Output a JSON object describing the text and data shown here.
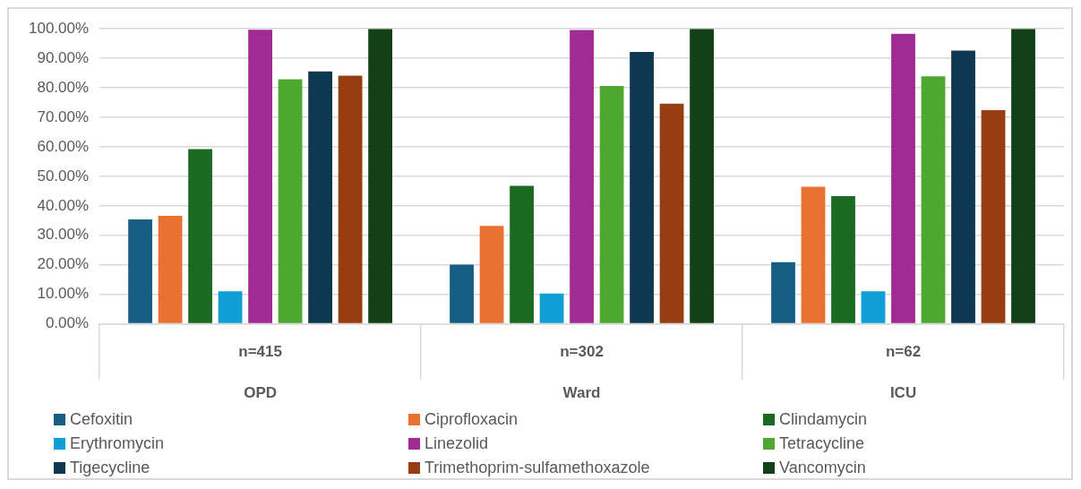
{
  "chart_data": {
    "type": "bar",
    "categories": [
      "OPD",
      "Ward",
      "ICU"
    ],
    "annotations": [
      "n=415",
      "n=302",
      "n=62"
    ],
    "series": [
      {
        "name": "Cefoxitin",
        "color": "#165e83",
        "values": [
          35.4,
          20.1,
          20.9
        ]
      },
      {
        "name": "Ciprofloxacin",
        "color": "#e97132",
        "values": [
          36.6,
          33.2,
          46.5
        ]
      },
      {
        "name": "Clindamycin",
        "color": "#1b6a23",
        "values": [
          59.2,
          46.8,
          43.3
        ]
      },
      {
        "name": "Erythromycin",
        "color": "#0f9ed5",
        "values": [
          11.0,
          10.3,
          11.0
        ]
      },
      {
        "name": "Linezolid",
        "color": "#a02b93",
        "values": [
          99.7,
          99.6,
          98.3
        ]
      },
      {
        "name": "Tetracycline",
        "color": "#4ea72e",
        "values": [
          82.9,
          80.6,
          83.9
        ]
      },
      {
        "name": "Tigecycline",
        "color": "#0e384f",
        "values": [
          85.6,
          92.2,
          92.6
        ]
      },
      {
        "name": "Trimethoprim-sulfamethoxazole",
        "color": "#963e11",
        "values": [
          84.1,
          74.6,
          72.4
        ]
      },
      {
        "name": "Vancomycin",
        "color": "#124017",
        "values": [
          100,
          100,
          100
        ]
      }
    ],
    "ylim": [
      0,
      100
    ],
    "yticks": [
      {
        "value": 0,
        "label": "0.00%"
      },
      {
        "value": 10,
        "label": "10.00%"
      },
      {
        "value": 20,
        "label": "20.00%"
      },
      {
        "value": 30,
        "label": "30.00%"
      },
      {
        "value": 40,
        "label": "40.00%"
      },
      {
        "value": 50,
        "label": "50.00%"
      },
      {
        "value": 60,
        "label": "60.00%"
      },
      {
        "value": 70,
        "label": "70.00%"
      },
      {
        "value": 80,
        "label": "80.00%"
      },
      {
        "value": 90,
        "label": "90.00%"
      },
      {
        "value": 100,
        "label": "100.00%"
      }
    ],
    "grid": "y",
    "legend": "bottom"
  }
}
